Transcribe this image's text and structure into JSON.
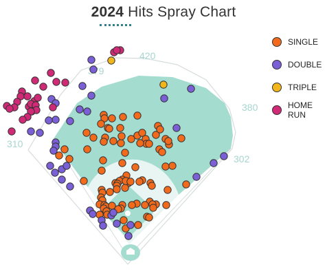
{
  "title_year": "2024",
  "title_rest": "Hits Spray Chart",
  "chart_data": {
    "type": "scatter",
    "title": "2024 Hits Spray Chart",
    "field_distances": [
      {
        "label": "310"
      },
      {
        "label": "379"
      },
      {
        "label": "420"
      },
      {
        "label": "380"
      },
      {
        "label": "302"
      }
    ],
    "legend": [
      {
        "name": "SINGLE",
        "color": "#f26b1d"
      },
      {
        "name": "DOUBLE",
        "color": "#7a5fd6"
      },
      {
        "name": "TRIPLE",
        "color": "#f2b51b"
      },
      {
        "name": "HOME RUN",
        "color": "#d02a77"
      }
    ],
    "series": [
      {
        "name": "SINGLE",
        "points": [
          [
            151,
            167
          ],
          [
            152,
            172
          ],
          [
            147,
            180
          ],
          [
            163,
            172
          ],
          [
            179,
            170
          ],
          [
            200,
            168
          ],
          [
            175,
            186
          ],
          [
            157,
            186
          ],
          [
            159,
            187
          ],
          [
            126,
            193
          ],
          [
            136,
            200
          ],
          [
            153,
            200
          ],
          [
            151,
            206
          ],
          [
            165,
            205
          ],
          [
            176,
            208
          ],
          [
            177,
            198
          ],
          [
            191,
            202
          ],
          [
            200,
            197
          ],
          [
            207,
            193
          ],
          [
            212,
            202
          ],
          [
            213,
            209
          ],
          [
            204,
            208
          ],
          [
            217,
            209
          ],
          [
            227,
            196
          ],
          [
            230,
            183
          ],
          [
            233,
            188
          ],
          [
            232,
            217
          ],
          [
            241,
            202
          ],
          [
            246,
            210
          ],
          [
            245,
            205
          ],
          [
            264,
            201
          ],
          [
            236,
            221
          ],
          [
            241,
            242
          ],
          [
            251,
            241
          ],
          [
            182,
            222
          ],
          [
            150,
            233
          ],
          [
            178,
            237
          ],
          [
            197,
            243
          ],
          [
            148,
            248
          ],
          [
            184,
            255
          ],
          [
            178,
            261
          ],
          [
            174,
            263
          ],
          [
            168,
            266
          ],
          [
            171,
            267
          ],
          [
            187,
            266
          ],
          [
            182,
            273
          ],
          [
            183,
            263
          ],
          [
            190,
            264
          ],
          [
            170,
            270
          ],
          [
            170,
            275
          ],
          [
            160,
            279
          ],
          [
            207,
            262
          ],
          [
            203,
            264
          ],
          [
            219,
            266
          ],
          [
            221,
            270
          ],
          [
            244,
            276
          ],
          [
            218,
            293
          ],
          [
            211,
            298
          ],
          [
            227,
            297
          ],
          [
            222,
            297
          ],
          [
            223,
            302
          ],
          [
            199,
            296
          ],
          [
            192,
            298
          ],
          [
            178,
            298
          ],
          [
            176,
            303
          ],
          [
            172,
            304
          ],
          [
            148,
            276
          ],
          [
            149,
            280
          ],
          [
            147,
            287
          ],
          [
            149,
            291
          ],
          [
            145,
            297
          ],
          [
            152,
            298
          ],
          [
            154,
            300
          ],
          [
            151,
            303
          ],
          [
            155,
            307
          ],
          [
            163,
            299
          ],
          [
            145,
            312
          ],
          [
            156,
            312
          ],
          [
            214,
            315
          ],
          [
            217,
            316
          ],
          [
            201,
            327
          ],
          [
            180,
            320
          ],
          [
            183,
            332
          ],
          [
            122,
            263
          ],
          [
            94,
            217
          ],
          [
            86,
            226
          ],
          [
            101,
            231
          ],
          [
            242,
            298
          ],
          [
            271,
            268
          ],
          [
            127,
            217
          ]
        ]
      },
      {
        "name": "DOUBLE",
        "points": [
          [
            133,
            87
          ],
          [
            136,
            101
          ],
          [
            120,
            125
          ],
          [
            133,
            139
          ],
          [
            75,
            144
          ],
          [
            102,
            176
          ],
          [
            81,
            150
          ],
          [
            116,
            159
          ],
          [
            127,
            162
          ],
          [
            81,
            174
          ],
          [
            71,
            175
          ],
          [
            45,
            191
          ],
          [
            58,
            193
          ],
          [
            81,
            207
          ],
          [
            81,
            213
          ],
          [
            78,
            219
          ],
          [
            73,
            241
          ],
          [
            90,
            246
          ],
          [
            97,
            241
          ],
          [
            80,
            251
          ],
          [
            90,
            261
          ],
          [
            102,
            271
          ],
          [
            239,
            143
          ],
          [
            278,
            129
          ],
          [
            257,
            186
          ],
          [
            286,
            257
          ],
          [
            311,
            237
          ],
          [
            326,
            227
          ],
          [
            131,
            306
          ],
          [
            135,
            311
          ],
          [
            148,
            320
          ],
          [
            150,
            328
          ],
          [
            162,
            313
          ],
          [
            187,
            343
          ],
          [
            190,
            327
          ],
          [
            165,
            309
          ],
          [
            170,
            325
          ]
        ]
      },
      {
        "name": "TRIPLE",
        "points": [
          [
            162,
            88
          ],
          [
            238,
            123
          ]
        ]
      },
      {
        "name": "HOME RUN",
        "points": [
          [
            166,
            76
          ],
          [
            175,
            73
          ],
          [
            170,
            73
          ],
          [
            74,
            106
          ],
          [
            95,
            120
          ],
          [
            82,
            119
          ],
          [
            51,
            117
          ],
          [
            32,
            133
          ],
          [
            30,
            140
          ],
          [
            40,
            140
          ],
          [
            25,
            148
          ],
          [
            42,
            155
          ],
          [
            46,
            162
          ],
          [
            50,
            147
          ],
          [
            45,
            151
          ],
          [
            52,
            153
          ],
          [
            53,
            160
          ],
          [
            45,
            162
          ],
          [
            21,
            156
          ],
          [
            10,
            154
          ],
          [
            14,
            158
          ],
          [
            17,
            191
          ],
          [
            40,
            170
          ],
          [
            33,
            174
          ],
          [
            63,
            126
          ],
          [
            77,
            156
          ],
          [
            55,
            142
          ]
        ]
      }
    ]
  }
}
